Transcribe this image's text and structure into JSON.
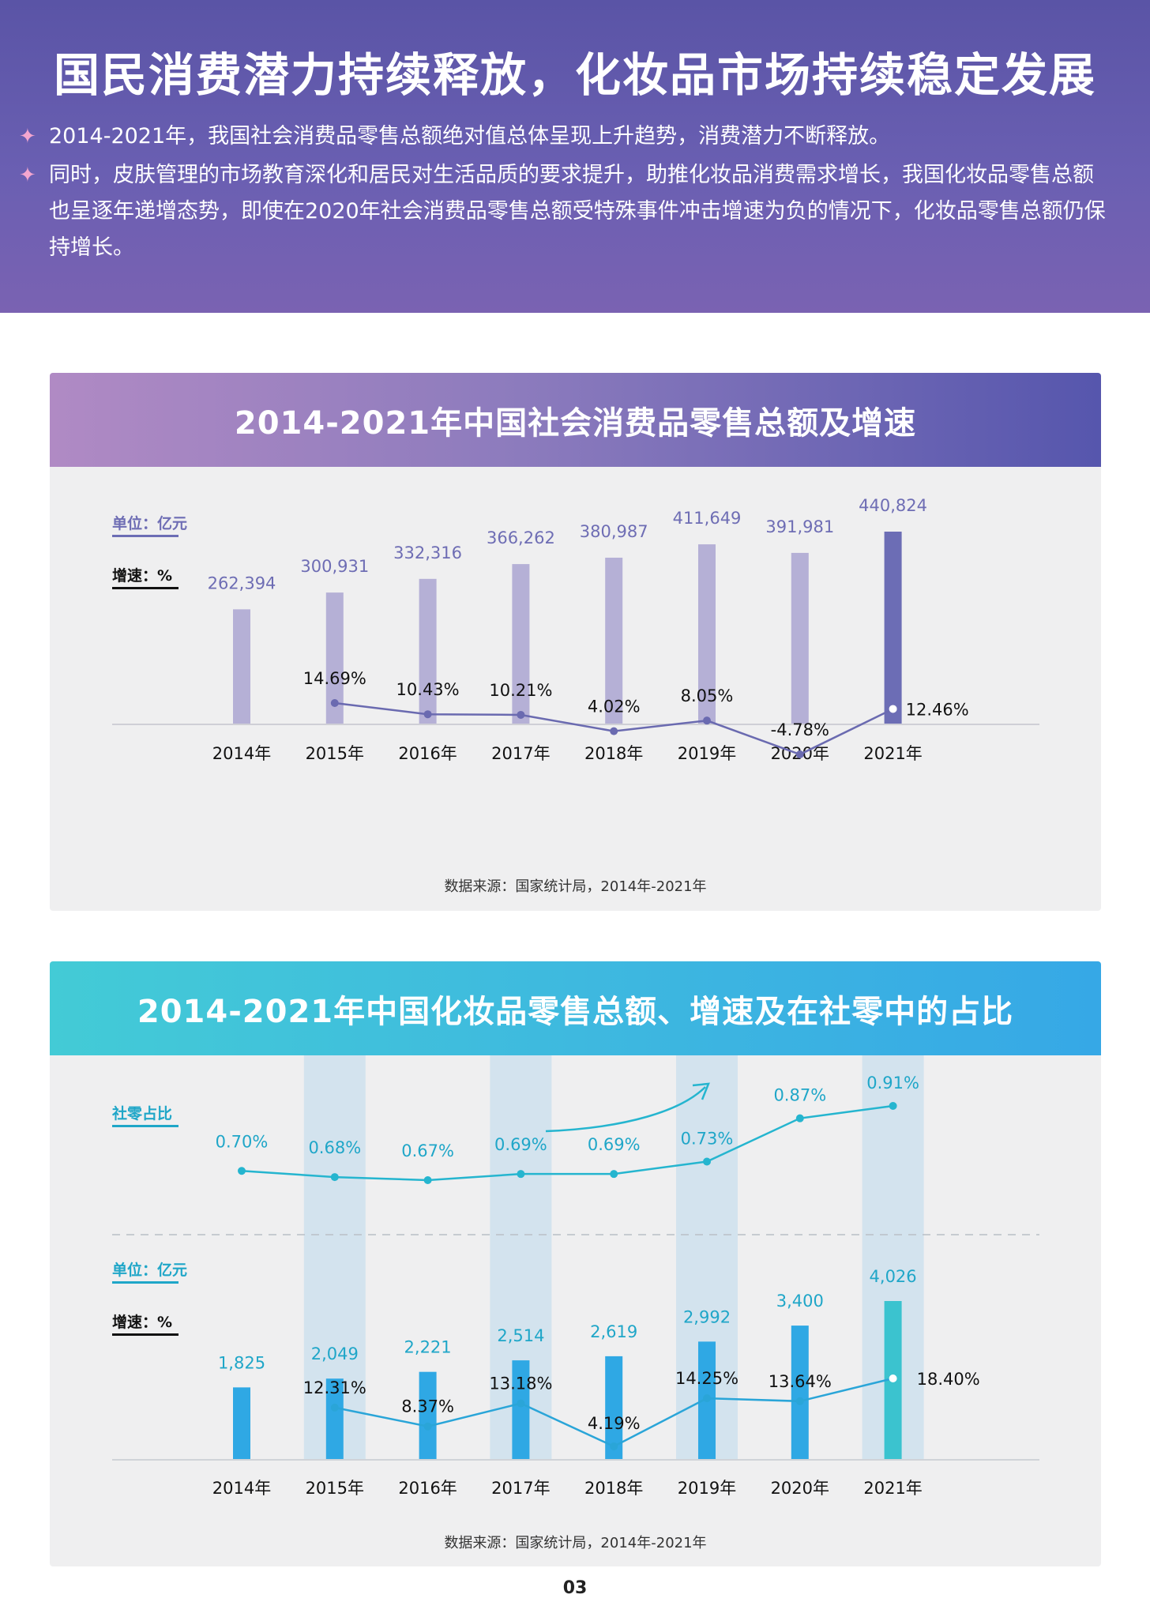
{
  "header": {
    "title": "国民消费潜力持续释放，化妆品市场持续稳定发展",
    "bullets": [
      "2014-2021年，我国社会消费品零售总额绝对值总体呈现上升趋势，消费潜力不断释放。",
      "同时，皮肤管理的市场教育深化和居民对生活品质的要求提升，助推化妆品消费需求增长，我国化妆品零售总额也呈逐年递增态势，即使在2020年社会消费品零售总额受特殊事件冲击增速为负的情况下，化妆品零售总额仍保持增长。"
    ],
    "bullet_marker": "✦"
  },
  "colors": {
    "header_bg": "#5f58aa",
    "chart1_bar": "#b5b0d6",
    "chart1_bar_highlight": "#6c6db5",
    "chart1_line": "#6a6ab0",
    "chart1_value_text": "#6e6db4",
    "chart2_bar": "#2fa8e4",
    "chart2_bar_highlight": "#3bc3cf",
    "chart2_line": "#2aa5d8",
    "chart2_share_line": "#25b5cf",
    "chart2_text": "#1fa6c8",
    "chart2_band": "#d3e3ee"
  },
  "chart_data": [
    {
      "type": "bar",
      "title": "2014-2021年中国社会消费品零售总额及增速",
      "categories": [
        "2014年",
        "2015年",
        "2016年",
        "2017年",
        "2018年",
        "2019年",
        "2020年",
        "2021年"
      ],
      "series": [
        {
          "name": "单位：亿元",
          "values": [
            262394,
            300931,
            332316,
            366262,
            380987,
            411649,
            391981,
            440824
          ],
          "labels": [
            "262,394",
            "300,931",
            "332,316",
            "366,262",
            "380,987",
            "411,649",
            "391,981",
            "440,824"
          ]
        },
        {
          "name": "增速：%",
          "type": "line",
          "values": [
            null,
            14.69,
            10.43,
            10.21,
            4.02,
            8.05,
            -4.78,
            12.46
          ],
          "labels": [
            "",
            "14.69%",
            "10.43%",
            "10.21%",
            "4.02%",
            "8.05%",
            "-4.78%",
            "12.46%"
          ]
        }
      ],
      "unit_label": "单位：亿元",
      "growth_label": "增速：%",
      "highlight_category": "2021年",
      "source": "数据来源：国家统计局，2014年-2021年"
    },
    {
      "type": "bar",
      "title": "2014-2021年中国化妆品零售总额、增速及在社零中的占比",
      "categories": [
        "2014年",
        "2015年",
        "2016年",
        "2017年",
        "2018年",
        "2019年",
        "2020年",
        "2021年"
      ],
      "series": [
        {
          "name": "社零占比",
          "type": "line",
          "values": [
            0.7,
            0.68,
            0.67,
            0.69,
            0.69,
            0.73,
            0.87,
            0.91
          ],
          "labels": [
            "0.70%",
            "0.68%",
            "0.67%",
            "0.69%",
            "0.69%",
            "0.73%",
            "0.87%",
            "0.91%"
          ]
        },
        {
          "name": "单位：亿元",
          "values": [
            1825,
            2049,
            2221,
            2514,
            2619,
            2992,
            3400,
            4026
          ],
          "labels": [
            "1,825",
            "2,049",
            "2,221",
            "2,514",
            "2,619",
            "2,992",
            "3,400",
            "4,026"
          ]
        },
        {
          "name": "增速：%",
          "type": "line",
          "values": [
            null,
            12.31,
            8.37,
            13.18,
            4.19,
            14.25,
            13.64,
            18.4
          ],
          "labels": [
            "",
            "12.31%",
            "8.37%",
            "13.18%",
            "4.19%",
            "14.25%",
            "13.64%",
            "18.40%"
          ]
        }
      ],
      "share_label": "社零占比",
      "unit_label": "单位：亿元",
      "growth_label": "增速：%",
      "highlight_category": "2021年",
      "source": "数据来源：国家统计局，2014年-2021年"
    }
  ],
  "page_number": "03"
}
